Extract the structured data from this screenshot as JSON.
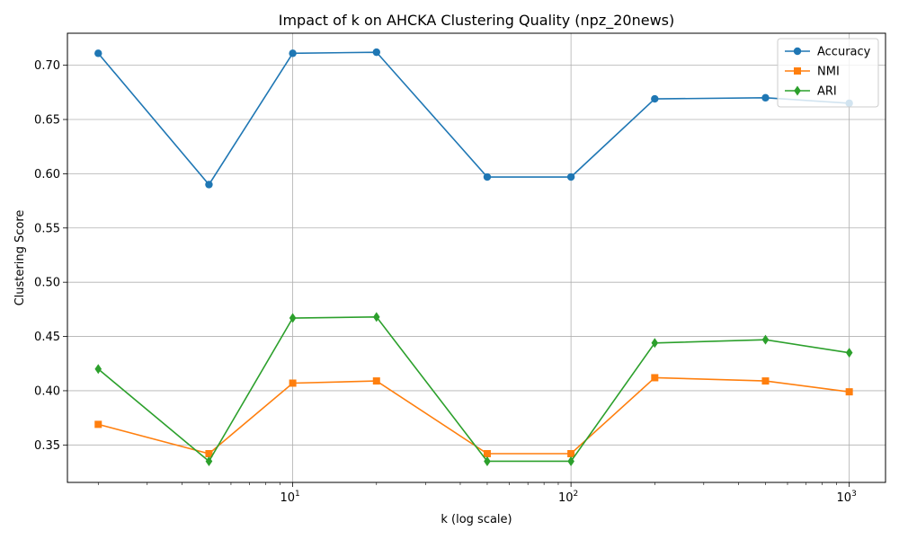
{
  "chart_data": {
    "type": "line",
    "title": "Impact of k on AHCKA Clustering Quality (npz_20news)",
    "xlabel": "k (log scale)",
    "ylabel": "Clustering Score",
    "xscale": "log",
    "xlim": [
      1.55,
      1350
    ],
    "ylim": [
      0.3155,
      0.7295
    ],
    "x": [
      2,
      5,
      10,
      20,
      50,
      100,
      200,
      500,
      1000
    ],
    "xticks": [
      10,
      100,
      1000
    ],
    "xtick_labels": [
      {
        "base": "10",
        "exp": "1"
      },
      {
        "base": "10",
        "exp": "2"
      },
      {
        "base": "10",
        "exp": "3"
      }
    ],
    "yticks": [
      0.35,
      0.4,
      0.45,
      0.5,
      0.55,
      0.6,
      0.65,
      0.7
    ],
    "ytick_labels": [
      "0.35",
      "0.40",
      "0.45",
      "0.50",
      "0.55",
      "0.60",
      "0.65",
      "0.70"
    ],
    "grid": true,
    "legend_position": "top-right",
    "series": [
      {
        "name": "Accuracy",
        "color": "#1f77b4",
        "marker": "circle",
        "values": [
          0.711,
          0.59,
          0.711,
          0.712,
          0.597,
          0.597,
          0.669,
          0.67,
          0.665
        ]
      },
      {
        "name": "NMI",
        "color": "#ff7f0e",
        "marker": "square",
        "values": [
          0.369,
          0.342,
          0.407,
          0.409,
          0.342,
          0.342,
          0.412,
          0.409,
          0.399
        ]
      },
      {
        "name": "ARI",
        "color": "#2ca02c",
        "marker": "diamond",
        "values": [
          0.42,
          0.335,
          0.467,
          0.468,
          0.335,
          0.335,
          0.444,
          0.447,
          0.435
        ]
      }
    ]
  }
}
